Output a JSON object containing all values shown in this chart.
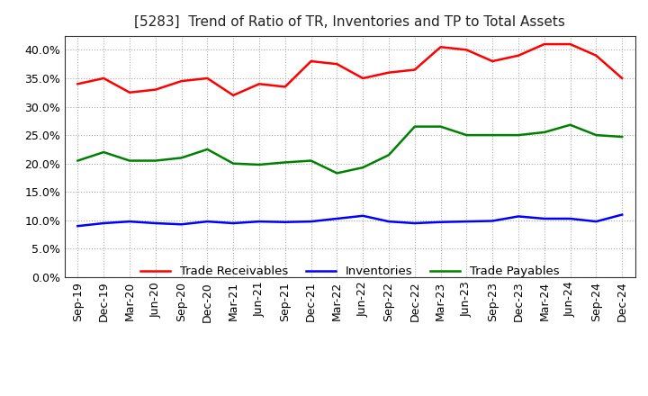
{
  "title": "[5283]  Trend of Ratio of TR, Inventories and TP to Total Assets",
  "x_labels": [
    "Sep-19",
    "Dec-19",
    "Mar-20",
    "Jun-20",
    "Sep-20",
    "Dec-20",
    "Mar-21",
    "Jun-21",
    "Sep-21",
    "Dec-21",
    "Mar-22",
    "Jun-22",
    "Sep-22",
    "Dec-22",
    "Mar-23",
    "Jun-23",
    "Sep-23",
    "Dec-23",
    "Mar-24",
    "Jun-24",
    "Sep-24",
    "Dec-24"
  ],
  "trade_receivables": [
    0.34,
    0.35,
    0.325,
    0.33,
    0.345,
    0.35,
    0.32,
    0.34,
    0.335,
    0.38,
    0.375,
    0.35,
    0.36,
    0.365,
    0.405,
    0.4,
    0.38,
    0.39,
    0.41,
    0.41,
    0.39,
    0.35
  ],
  "inventories": [
    0.09,
    0.095,
    0.098,
    0.095,
    0.093,
    0.098,
    0.095,
    0.098,
    0.097,
    0.098,
    0.103,
    0.108,
    0.098,
    0.095,
    0.097,
    0.098,
    0.099,
    0.107,
    0.103,
    0.103,
    0.098,
    0.11
  ],
  "trade_payables": [
    0.205,
    0.22,
    0.205,
    0.205,
    0.21,
    0.225,
    0.2,
    0.198,
    0.202,
    0.205,
    0.183,
    0.193,
    0.215,
    0.265,
    0.265,
    0.25,
    0.25,
    0.25,
    0.255,
    0.268,
    0.25,
    0.247
  ],
  "tr_color": "#ff0000",
  "inv_color": "#0000ff",
  "tp_color": "#008000",
  "ylim": [
    0.0,
    0.425
  ],
  "yticks": [
    0.0,
    0.05,
    0.1,
    0.15,
    0.2,
    0.25,
    0.3,
    0.35,
    0.4
  ],
  "bg_color": "#ffffff",
  "grid_color": "#aaaaaa",
  "title_fontsize": 11,
  "tick_fontsize": 9,
  "legend_labels": [
    "Trade Receivables",
    "Inventories",
    "Trade Payables"
  ]
}
